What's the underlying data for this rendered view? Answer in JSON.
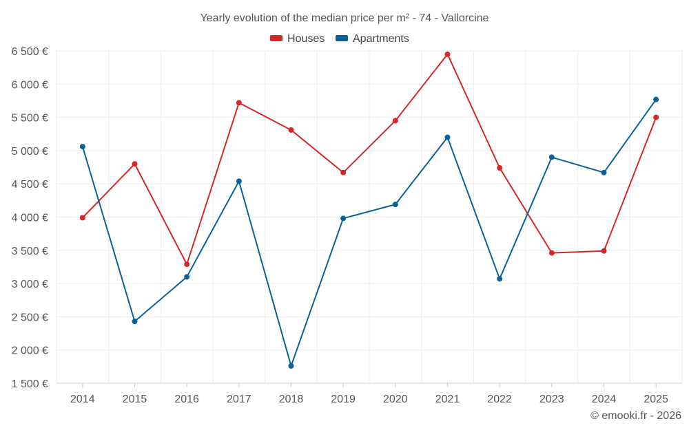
{
  "chart_data": {
    "type": "line",
    "title": "Yearly evolution of the median price per m² - 74 - Vallorcine",
    "xlabel": "",
    "ylabel": "",
    "categories": [
      "2014",
      "2015",
      "2016",
      "2017",
      "2018",
      "2019",
      "2020",
      "2021",
      "2022",
      "2023",
      "2024",
      "2025"
    ],
    "ylim": [
      1500,
      6500
    ],
    "yticks": [
      1500,
      2000,
      2500,
      3000,
      3500,
      4000,
      4500,
      5000,
      5500,
      6000,
      6500
    ],
    "ytick_labels": [
      "1 500 €",
      "2 000 €",
      "2 500 €",
      "3 000 €",
      "3 500 €",
      "4 000 €",
      "4 500 €",
      "5 000 €",
      "5 500 €",
      "6 000 €",
      "6 500 €"
    ],
    "grid": true,
    "legend_position": "top-center",
    "series": [
      {
        "name": "Houses",
        "color": "#d62728",
        "values": [
          3990,
          4800,
          3290,
          5720,
          5310,
          4670,
          5450,
          6450,
          4740,
          3460,
          3490,
          5500
        ]
      },
      {
        "name": "Apartments",
        "color": "#0a6196",
        "values": [
          5060,
          2430,
          3100,
          4540,
          1760,
          3980,
          4190,
          5200,
          3070,
          4900,
          4670,
          5770
        ]
      }
    ]
  },
  "credit": "© emooki.fr - 2026"
}
